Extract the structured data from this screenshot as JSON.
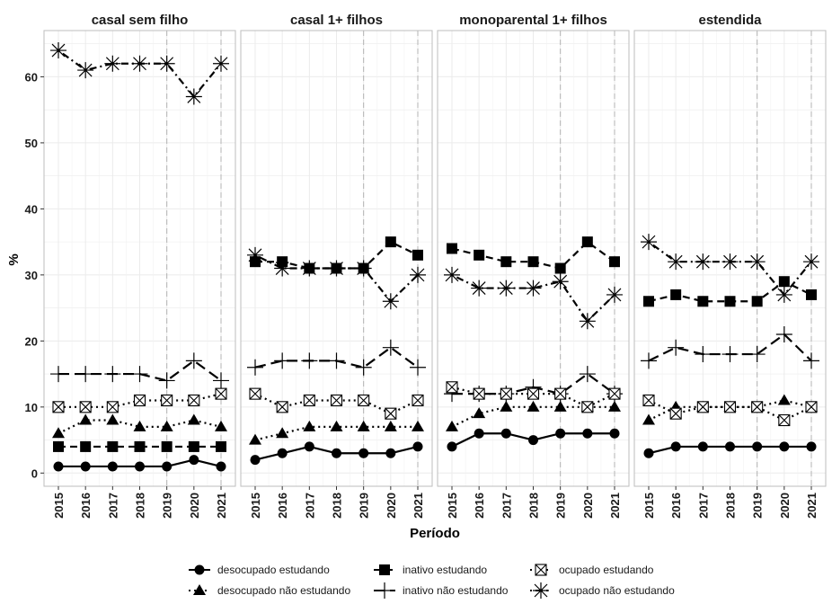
{
  "chart_data": {
    "type": "line",
    "facet_by": "tipo de família",
    "panels": [
      "casal sem filho",
      "casal 1+ filhos",
      "monoparental 1+ filhos",
      "estendida"
    ],
    "x": [
      "2015",
      "2016",
      "2017",
      "2018",
      "2019",
      "2020",
      "2021"
    ],
    "xlabel": "Período",
    "ylabel": "%",
    "ylim": [
      -2,
      67
    ],
    "yticks": [
      0,
      10,
      20,
      30,
      40,
      50,
      60
    ],
    "vertical_reference_lines": [
      "2019",
      "2021"
    ],
    "grid": true,
    "legend_position": "bottom",
    "series": [
      {
        "name": "desocupado estudando",
        "marker": "circle",
        "linetype": "solid",
        "values": [
          [
            1,
            1,
            1,
            1,
            1,
            2,
            1
          ],
          [
            2,
            3,
            4,
            3,
            3,
            3,
            4
          ],
          [
            4,
            6,
            6,
            5,
            6,
            6,
            6
          ],
          [
            3,
            4,
            4,
            4,
            4,
            4,
            4
          ]
        ]
      },
      {
        "name": "desocupado não estudando",
        "marker": "triangle",
        "linetype": "dotted",
        "values": [
          [
            6,
            8,
            8,
            7,
            7,
            8,
            7
          ],
          [
            5,
            6,
            7,
            7,
            7,
            7,
            7
          ],
          [
            7,
            9,
            10,
            10,
            10,
            10,
            10
          ],
          [
            8,
            10,
            10,
            10,
            10,
            11,
            10
          ]
        ]
      },
      {
        "name": "inativo estudando",
        "marker": "square",
        "linetype": "dashed",
        "values": [
          [
            4,
            4,
            4,
            4,
            4,
            4,
            4
          ],
          [
            32,
            32,
            31,
            31,
            31,
            35,
            33
          ],
          [
            34,
            33,
            32,
            32,
            31,
            35,
            32
          ],
          [
            26,
            27,
            26,
            26,
            26,
            29,
            27
          ]
        ]
      },
      {
        "name": "inativo não estudando",
        "marker": "plus",
        "linetype": "longdash",
        "values": [
          [
            15,
            15,
            15,
            15,
            14,
            17,
            14
          ],
          [
            16,
            17,
            17,
            17,
            16,
            19,
            16
          ],
          [
            12,
            12,
            12,
            13,
            12,
            15,
            12
          ],
          [
            17,
            19,
            18,
            18,
            18,
            21,
            17
          ]
        ]
      },
      {
        "name": "ocupado estudando",
        "marker": "square-x",
        "linetype": "dotted",
        "values": [
          [
            10,
            10,
            10,
            11,
            11,
            11,
            12
          ],
          [
            12,
            10,
            11,
            11,
            11,
            9,
            11
          ],
          [
            13,
            12,
            12,
            12,
            12,
            10,
            12
          ],
          [
            11,
            9,
            10,
            10,
            10,
            8,
            10
          ]
        ]
      },
      {
        "name": "ocupado não estudando",
        "marker": "asterisk",
        "linetype": "dotdash",
        "values": [
          [
            64,
            61,
            62,
            62,
            62,
            57,
            62
          ],
          [
            33,
            31,
            31,
            31,
            31,
            26,
            30
          ],
          [
            30,
            28,
            28,
            28,
            29,
            23,
            27
          ],
          [
            35,
            32,
            32,
            32,
            32,
            27,
            32
          ]
        ]
      }
    ]
  }
}
